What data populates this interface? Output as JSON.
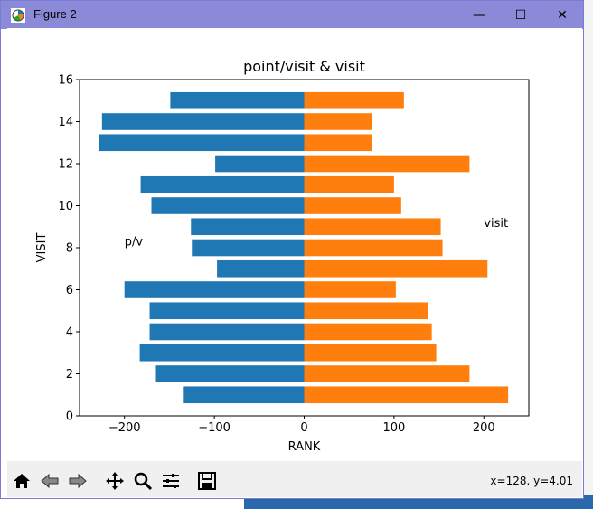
{
  "window": {
    "title": "Figure 2",
    "minimize_glyph": "—",
    "maximize_glyph": "☐",
    "close_glyph": "✕"
  },
  "toolbar": {
    "icons": [
      "home-icon",
      "back-icon",
      "forward-icon",
      "pan-icon",
      "zoom-icon",
      "configure-subplots-icon",
      "save-icon"
    ],
    "coords_text": "x=128. y=4.01"
  },
  "colors": {
    "series_left": "#1f77b4",
    "series_right": "#ff7f0e",
    "titlebar": "#8a8ad8"
  },
  "chart_data": {
    "type": "bar",
    "orientation": "horizontal",
    "title": "point/visit & visit",
    "xlabel": "RANK",
    "ylabel": "VISIT",
    "xlim": [
      -250,
      250
    ],
    "ylim": [
      0,
      16
    ],
    "xticks": [
      -200,
      -100,
      0,
      100,
      200
    ],
    "xtick_labels": [
      "−200",
      "−100",
      "0",
      "100",
      "200"
    ],
    "yticks": [
      0,
      2,
      4,
      6,
      8,
      10,
      12,
      14,
      16
    ],
    "ytick_labels": [
      "0",
      "2",
      "4",
      "6",
      "8",
      "10",
      "12",
      "14",
      "16"
    ],
    "y": [
      1,
      2,
      3,
      4,
      5,
      6,
      7,
      8,
      9,
      10,
      11,
      12,
      13,
      14,
      15
    ],
    "series": [
      {
        "values": [
          -135,
          -165,
          -183,
          -172,
          -172,
          -200,
          -97,
          -125,
          -126,
          -170,
          -182,
          -99,
          -228,
          -225,
          -149
        ]
      },
      {
        "values": [
          227,
          184,
          147,
          142,
          138,
          102,
          204,
          154,
          152,
          108,
          100,
          184,
          75,
          76,
          111
        ]
      }
    ],
    "annotations": [
      {
        "text": "p/v",
        "x": -200,
        "y": 8.1
      },
      {
        "text": "visit",
        "x": 200,
        "y": 9.0
      }
    ],
    "grid": false,
    "legend": "none"
  }
}
